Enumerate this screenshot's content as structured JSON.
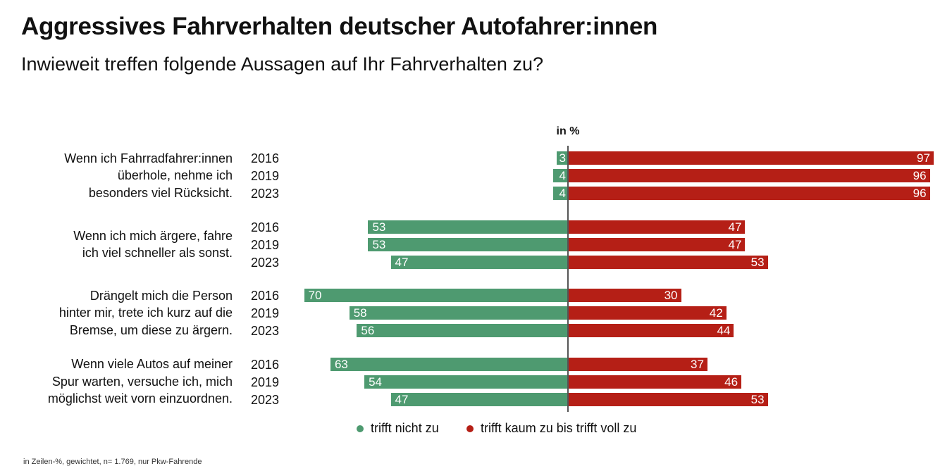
{
  "title": "Aggressives Fahrverhalten deutscher Autofahrer:innen",
  "subtitle": "Inwieweit treffen folgende Aussagen auf Ihr Fahrverhalten zu?",
  "unit_label": "in %",
  "footnote": "in Zeilen-%, gewichtet, n= 1.769, nur Pkw-Fahrende",
  "colors": {
    "negative": "#4e9a70",
    "positive": "#b51f16"
  },
  "chart_data": {
    "type": "bar",
    "orientation": "horizontal-diverging",
    "unit": "%",
    "years": [
      "2016",
      "2019",
      "2023"
    ],
    "series": [
      {
        "name": "trifft nicht zu",
        "color": "#4e9a70"
      },
      {
        "name": "trifft kaum zu bis trifft voll zu",
        "color": "#b51f16"
      }
    ],
    "groups": [
      {
        "question": "Wenn ich Fahrradfahrer:innen\nüberhole, nehme ich\nbesonders viel Rücksicht.",
        "rows": [
          {
            "year": "2016",
            "nicht": 3,
            "zu": 97
          },
          {
            "year": "2019",
            "nicht": 4,
            "zu": 96
          },
          {
            "year": "2023",
            "nicht": 4,
            "zu": 96
          }
        ]
      },
      {
        "question": "Wenn ich mich ärgere, fahre\nich viel schneller als sonst.",
        "rows": [
          {
            "year": "2016",
            "nicht": 53,
            "zu": 47
          },
          {
            "year": "2019",
            "nicht": 53,
            "zu": 47
          },
          {
            "year": "2023",
            "nicht": 47,
            "zu": 53
          }
        ]
      },
      {
        "question": "Drängelt mich die Person\nhinter mir, trete ich kurz auf die\nBremse, um diese zu ärgern.",
        "rows": [
          {
            "year": "2016",
            "nicht": 70,
            "zu": 30
          },
          {
            "year": "2019",
            "nicht": 58,
            "zu": 42
          },
          {
            "year": "2023",
            "nicht": 56,
            "zu": 44
          }
        ]
      },
      {
        "question": "Wenn viele Autos auf meiner\nSpur warten, versuche ich, mich\nmöglichst weit vorn einzuordnen.",
        "rows": [
          {
            "year": "2016",
            "nicht": 63,
            "zu": 37
          },
          {
            "year": "2019",
            "nicht": 54,
            "zu": 46
          },
          {
            "year": "2023",
            "nicht": 47,
            "zu": 53
          }
        ]
      }
    ]
  },
  "legend": {
    "items": [
      {
        "label": "trifft nicht zu",
        "color": "#4e9a70"
      },
      {
        "label": "trifft kaum zu bis trifft voll zu",
        "color": "#b51f16"
      }
    ]
  }
}
